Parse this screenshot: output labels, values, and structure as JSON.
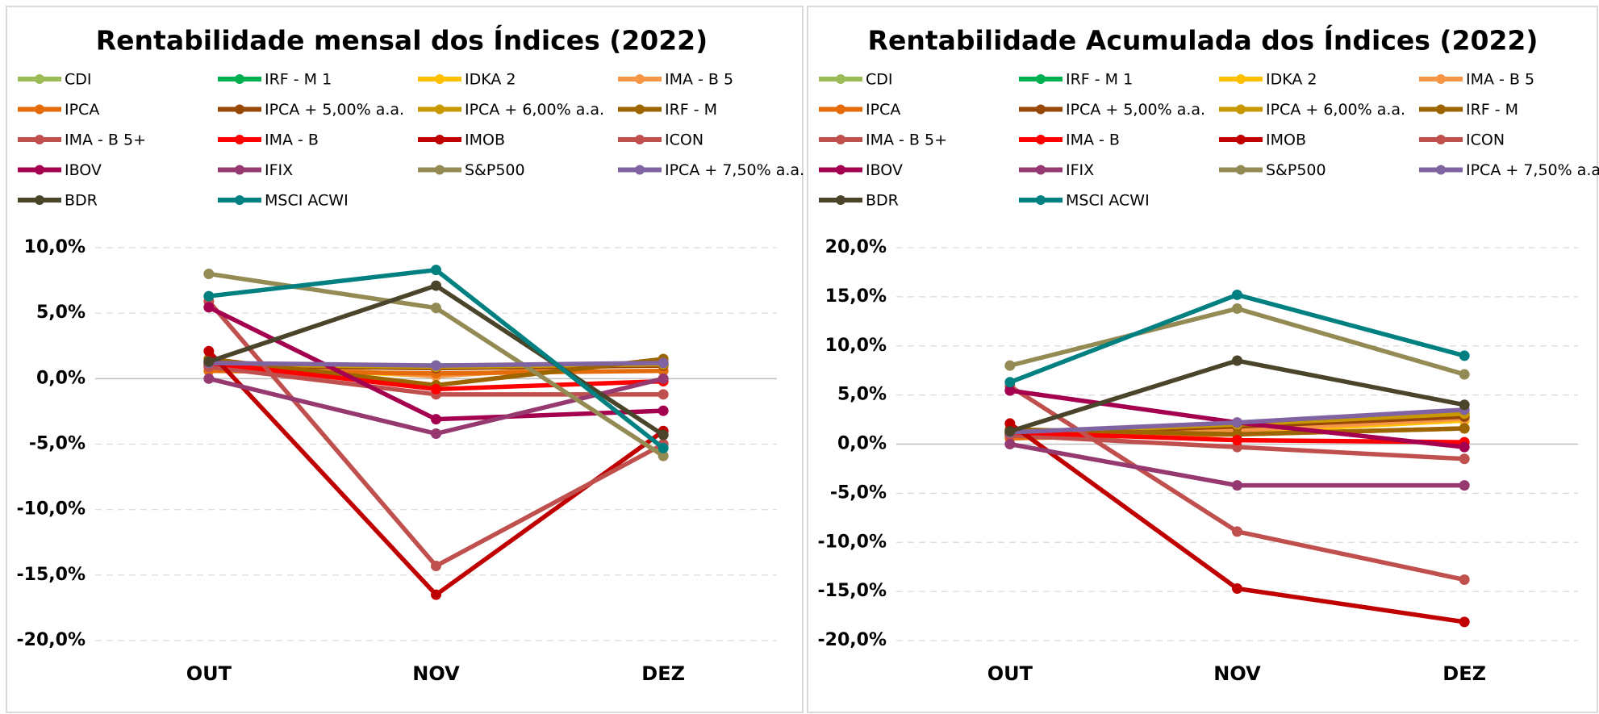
{
  "chart_data": [
    {
      "type": "line",
      "title": "Rentabilidade mensal dos Índices (2022)",
      "categories": [
        "OUT",
        "NOV",
        "DEZ"
      ],
      "ylim": [
        -20,
        10
      ],
      "yticks": [
        {
          "value": -20,
          "label": "-20,0%"
        },
        {
          "value": -15,
          "label": "-15,0%"
        },
        {
          "value": -10,
          "label": "-10,0%"
        },
        {
          "value": -5,
          "label": "-5,0%"
        },
        {
          "value": 0,
          "label": "0,0%"
        },
        {
          "value": 5,
          "label": "5,0%"
        },
        {
          "value": 10,
          "label": "10,0%"
        }
      ],
      "grid": true,
      "legend": "top",
      "series": [
        {
          "name": "CDI",
          "color": "#9bbb59",
          "values": [
            1.0,
            1.0,
            1.1
          ]
        },
        {
          "name": "IRF - M 1",
          "color": "#00b050",
          "values": [
            1.0,
            1.0,
            1.1
          ]
        },
        {
          "name": "IDKA 2",
          "color": "#ffc000",
          "values": [
            1.0,
            0.2,
            1.2
          ]
        },
        {
          "name": "IMA - B 5",
          "color": "#f79646",
          "values": [
            1.2,
            0.2,
            1.2
          ]
        },
        {
          "name": "IPCA",
          "color": "#e46c0a",
          "values": [
            0.6,
            0.4,
            0.6
          ]
        },
        {
          "name": "IPCA + 5,00% a.a.",
          "color": "#974706",
          "values": [
            1.0,
            0.8,
            1.0
          ]
        },
        {
          "name": "IPCA + 6,00% a.a.",
          "color": "#c89800",
          "values": [
            1.1,
            0.9,
            1.1
          ]
        },
        {
          "name": "IRF - M",
          "color": "#9c6500",
          "values": [
            1.5,
            -0.5,
            1.5
          ]
        },
        {
          "name": "IMA - B 5+",
          "color": "#c0504d",
          "values": [
            0.9,
            -1.2,
            -1.2
          ]
        },
        {
          "name": "IMA - B",
          "color": "#ff0000",
          "values": [
            1.2,
            -0.8,
            -0.2
          ]
        },
        {
          "name": "IMOB",
          "color": "#c00000",
          "values": [
            2.1,
            -16.5,
            -4.0
          ]
        },
        {
          "name": "ICON",
          "color": "#c0504d",
          "values": [
            5.9,
            -14.3,
            -5.0
          ]
        },
        {
          "name": "IBOV",
          "color": "#a50050",
          "values": [
            5.45,
            -3.1,
            -2.45
          ]
        },
        {
          "name": "IFIX",
          "color": "#953970",
          "values": [
            0.0,
            -4.2,
            0.0
          ]
        },
        {
          "name": "S&P500",
          "color": "#948a54",
          "values": [
            8.0,
            5.4,
            -5.9
          ]
        },
        {
          "name": "IPCA + 7,50% a.a.",
          "color": "#8064a2",
          "values": [
            1.2,
            1.0,
            1.2
          ]
        },
        {
          "name": "BDR",
          "color": "#4a452a",
          "values": [
            1.3,
            7.1,
            -4.3
          ]
        },
        {
          "name": "MSCI ACWI",
          "color": "#008080",
          "values": [
            6.3,
            8.3,
            -5.3
          ]
        }
      ]
    },
    {
      "type": "line",
      "title": "Rentabilidade Acumulada dos Índices (2022)",
      "categories": [
        "OUT",
        "NOV",
        "DEZ"
      ],
      "ylim": [
        -20,
        20
      ],
      "yticks": [
        {
          "value": -20,
          "label": "-20,0%"
        },
        {
          "value": -15,
          "label": "-15,0%"
        },
        {
          "value": -10,
          "label": "-10,0%"
        },
        {
          "value": -5,
          "label": "-5,0%"
        },
        {
          "value": 0,
          "label": "0,0%"
        },
        {
          "value": 5,
          "label": "5,0%"
        },
        {
          "value": 10,
          "label": "10,0%"
        },
        {
          "value": 15,
          "label": "15,0%"
        },
        {
          "value": 20,
          "label": "20,0%"
        }
      ],
      "grid": true,
      "legend": "top",
      "series": [
        {
          "name": "CDI",
          "color": "#9bbb59",
          "values": [
            1.0,
            2.0,
            3.1
          ]
        },
        {
          "name": "IRF - M 1",
          "color": "#00b050",
          "values": [
            1.0,
            2.0,
            3.1
          ]
        },
        {
          "name": "IDKA 2",
          "color": "#ffc000",
          "values": [
            1.0,
            1.2,
            2.4
          ]
        },
        {
          "name": "IMA - B 5",
          "color": "#f79646",
          "values": [
            1.2,
            1.4,
            2.6
          ]
        },
        {
          "name": "IPCA",
          "color": "#e46c0a",
          "values": [
            0.6,
            1.0,
            1.6
          ]
        },
        {
          "name": "IPCA + 5,00% a.a.",
          "color": "#974706",
          "values": [
            1.0,
            1.8,
            2.8
          ]
        },
        {
          "name": "IPCA + 6,00% a.a.",
          "color": "#c89800",
          "values": [
            1.1,
            2.0,
            3.1
          ]
        },
        {
          "name": "IRF - M",
          "color": "#9c6500",
          "values": [
            1.5,
            1.0,
            1.6
          ]
        },
        {
          "name": "IMA - B 5+",
          "color": "#c0504d",
          "values": [
            0.9,
            -0.3,
            -1.5
          ]
        },
        {
          "name": "IMA - B",
          "color": "#ff0000",
          "values": [
            1.2,
            0.4,
            0.2
          ]
        },
        {
          "name": "IMOB",
          "color": "#c00000",
          "values": [
            2.1,
            -14.7,
            -18.1
          ]
        },
        {
          "name": "ICON",
          "color": "#c0504d",
          "values": [
            5.9,
            -8.9,
            -13.8
          ]
        },
        {
          "name": "IBOV",
          "color": "#a50050",
          "values": [
            5.45,
            2.2,
            -0.3
          ]
        },
        {
          "name": "IFIX",
          "color": "#953970",
          "values": [
            0.0,
            -4.2,
            -4.2
          ]
        },
        {
          "name": "S&P500",
          "color": "#948a54",
          "values": [
            8.0,
            13.8,
            7.1
          ]
        },
        {
          "name": "IPCA + 7,50% a.a.",
          "color": "#8064a2",
          "values": [
            1.2,
            2.2,
            3.5
          ]
        },
        {
          "name": "BDR",
          "color": "#4a452a",
          "values": [
            1.3,
            8.5,
            4.0
          ]
        },
        {
          "name": "MSCI ACWI",
          "color": "#008080",
          "values": [
            6.3,
            15.2,
            9.0
          ]
        }
      ]
    }
  ]
}
